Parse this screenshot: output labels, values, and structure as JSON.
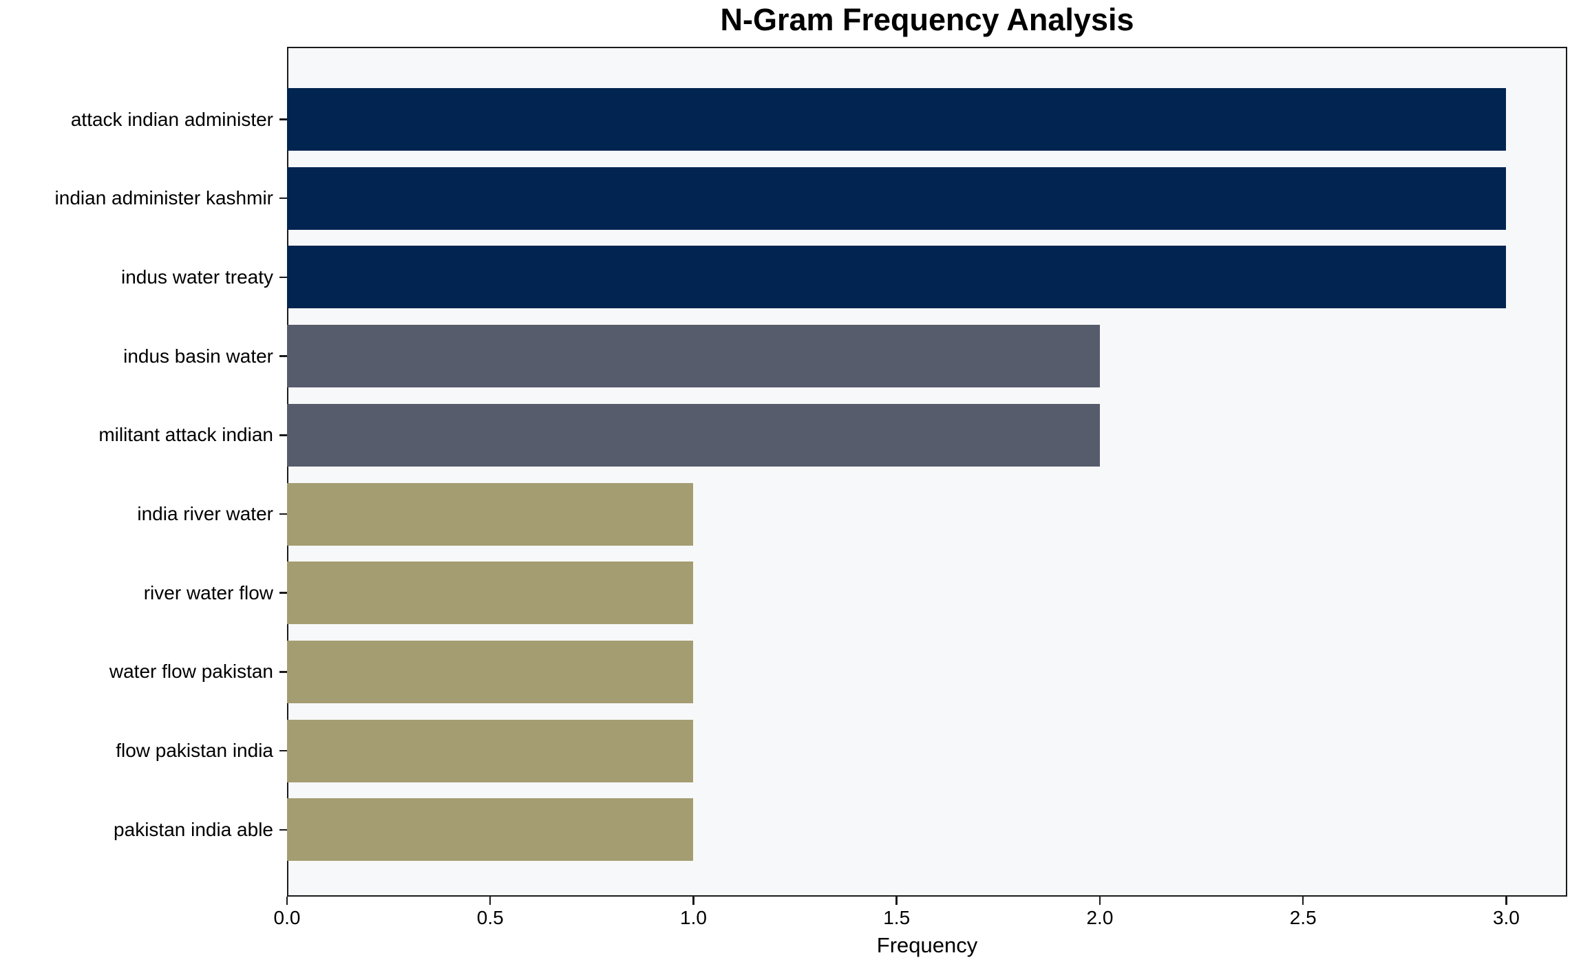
{
  "title": "N-Gram Frequency Analysis",
  "colors": {
    "figure_background": "#ffffff",
    "axes_background": "#f7f8f9",
    "spine": "#1a1a1a",
    "text": "#000000",
    "navy": "#022450",
    "slate_gray": "#565c6b",
    "khaki": "#a49d72"
  },
  "chart_data": {
    "type": "bar",
    "orientation": "horizontal",
    "title": "N-Gram Frequency Analysis",
    "xlabel": "Frequency",
    "ylabel": "",
    "categories": [
      "attack indian administer",
      "indian administer kashmir",
      "indus water treaty",
      "indus basin water",
      "militant attack indian",
      "india river water",
      "river water flow",
      "water flow pakistan",
      "flow pakistan india",
      "pakistan india able"
    ],
    "values": [
      3,
      3,
      3,
      2,
      2,
      1,
      1,
      1,
      1,
      1
    ],
    "bar_colors": [
      "#022450",
      "#022450",
      "#022450",
      "#565c6b",
      "#565c6b",
      "#a49d72",
      "#a49d72",
      "#a49d72",
      "#a49d72",
      "#a49d72"
    ],
    "xlim": [
      0,
      3.15
    ],
    "xticks": [
      0.0,
      0.5,
      1.0,
      1.5,
      2.0,
      2.5,
      3.0
    ],
    "xtick_labels": [
      "0.0",
      "0.5",
      "1.0",
      "1.5",
      "2.0",
      "2.5",
      "3.0"
    ],
    "grid": false,
    "legend": null
  }
}
